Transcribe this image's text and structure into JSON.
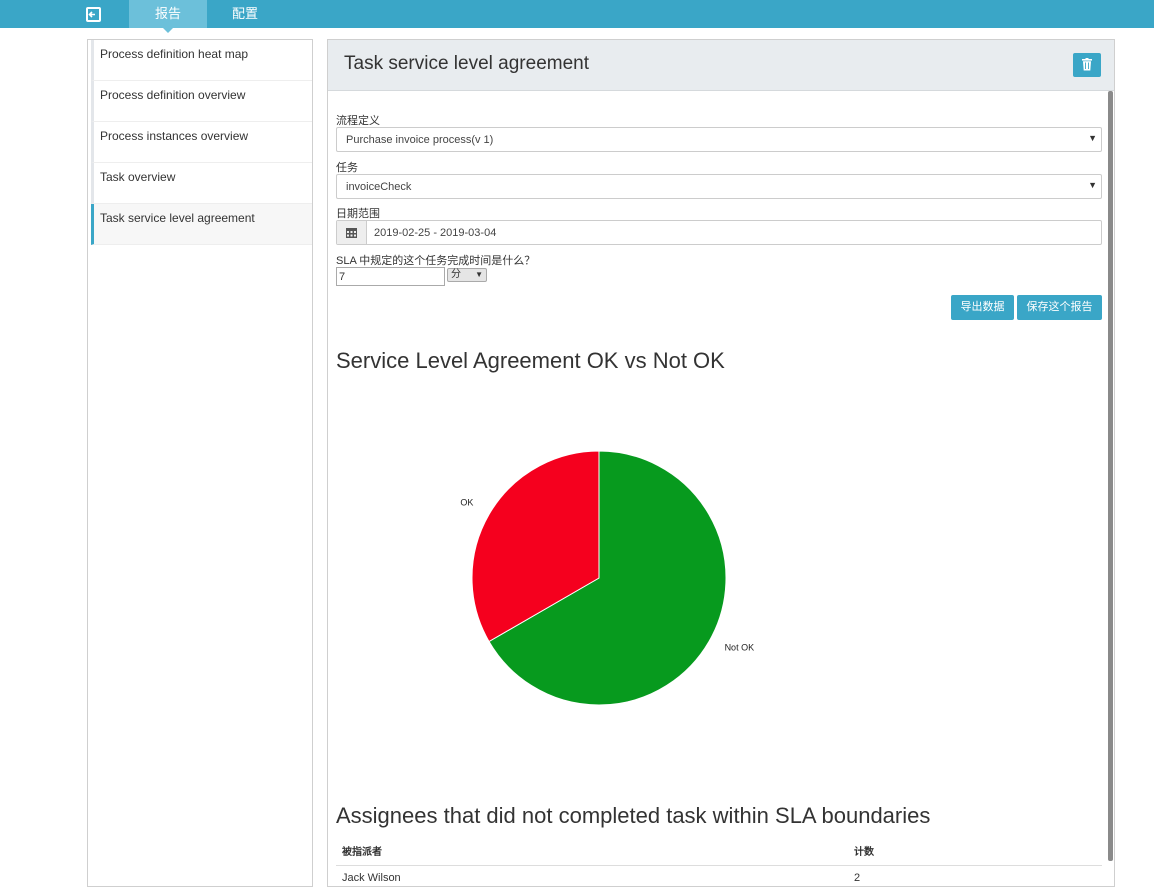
{
  "nav": {
    "tabs": [
      {
        "label": "报告",
        "active": true
      },
      {
        "label": "配置",
        "active": false
      }
    ]
  },
  "sidebar": {
    "items": [
      {
        "label": "Process definition heat map"
      },
      {
        "label": "Process definition overview"
      },
      {
        "label": "Process instances overview"
      },
      {
        "label": "Task overview"
      },
      {
        "label": "Task service level agreement",
        "active": true
      }
    ]
  },
  "report": {
    "title": "Task service level agreement",
    "process_label": "流程定义",
    "process_value": "Purchase invoice process(v 1)",
    "task_label": "任务",
    "task_value": "invoiceCheck",
    "date_label": "日期范围",
    "date_value": "2019-02-25 - 2019-03-04",
    "sla_question": "SLA 中规定的这个任务完成时间是什么？",
    "sla_value": "7",
    "sla_unit": "分",
    "export_label": "导出数据",
    "save_label": "保存这个报告",
    "chart_title": "Service Level Agreement OK vs Not OK",
    "table_title": "Assignees that did not completed task within SLA boundaries",
    "table": {
      "headers": [
        "被指派者",
        "计数"
      ],
      "rows": [
        [
          "Jack Wilson",
          "2"
        ]
      ]
    }
  },
  "colors": {
    "accent": "#3aa6c7",
    "ok": "#f5001e",
    "not_ok": "#079a1e"
  },
  "chart_data": {
    "type": "pie",
    "title": "Service Level Agreement OK vs Not OK",
    "slices": [
      {
        "label": "OK",
        "value": 1,
        "color": "#f5001e"
      },
      {
        "label": "Not OK",
        "value": 2,
        "color": "#079a1e"
      }
    ]
  }
}
